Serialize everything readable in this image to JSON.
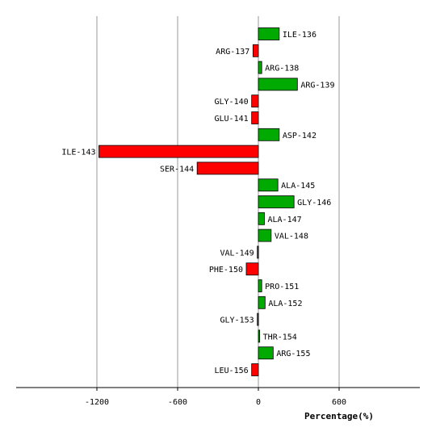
{
  "chart_data": {
    "type": "bar",
    "orientation": "horizontal",
    "xlabel": "Percentage(%)",
    "xlim": [
      -1200,
      1200
    ],
    "xticks": [
      -1200,
      -600,
      0,
      600
    ],
    "grid": true,
    "colors": {
      "positive": "#00aa00",
      "negative": "#ff0000",
      "grid": "#999999"
    },
    "categories": [
      "ILE-136",
      "ARG-137",
      "ARG-138",
      "ARG-139",
      "GLY-140",
      "GLU-141",
      "ASP-142",
      "ILE-143",
      "SER-144",
      "ALA-145",
      "GLY-146",
      "ALA-147",
      "VAL-148",
      "VAL-149",
      "PHE-150",
      "PRO-151",
      "ALA-152",
      "GLY-153",
      "THR-154",
      "ARG-155",
      "LEU-156"
    ],
    "values": [
      155,
      -40,
      25,
      290,
      -50,
      -50,
      155,
      -1185,
      -455,
      145,
      265,
      45,
      95,
      -8,
      -90,
      25,
      50,
      -8,
      10,
      110,
      -50
    ]
  }
}
